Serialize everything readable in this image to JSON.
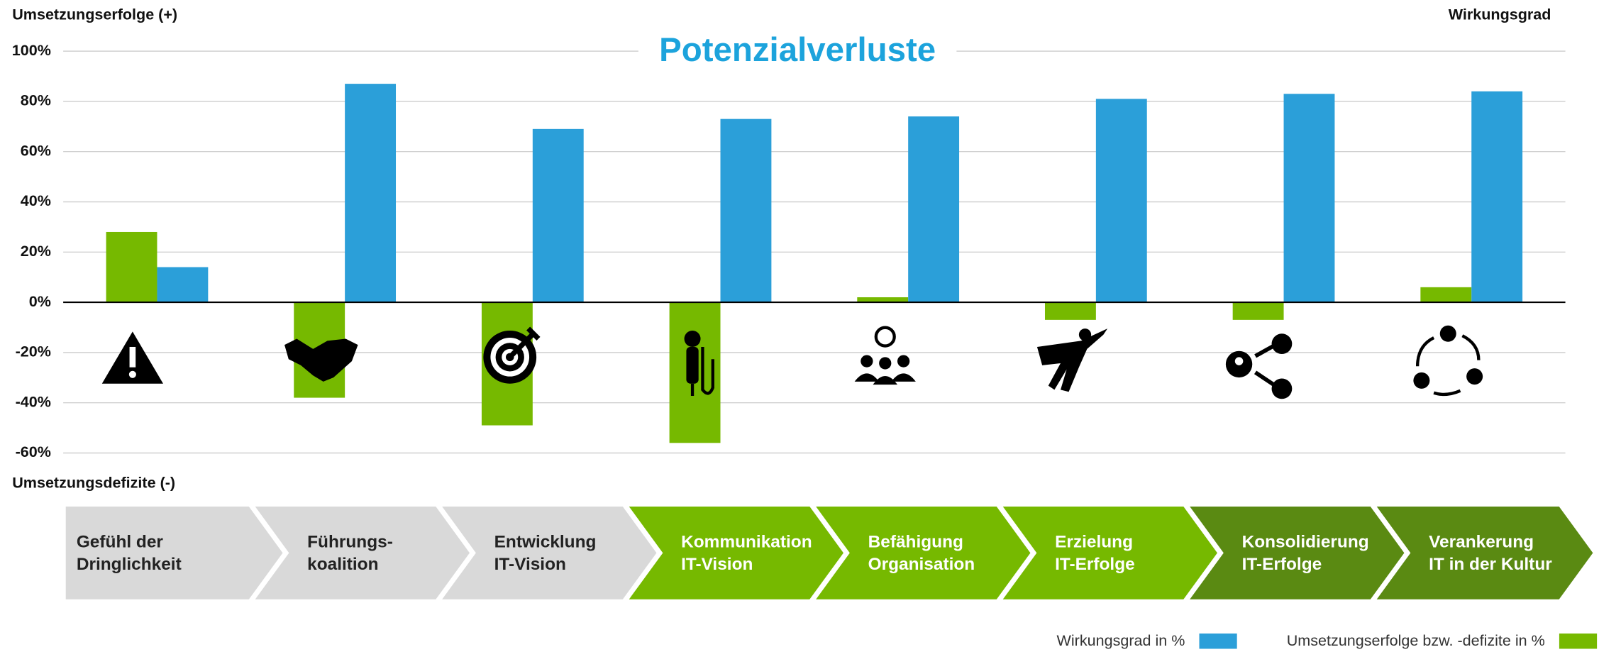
{
  "chart_data": {
    "type": "bar",
    "title": "Potenzialverluste",
    "y_label_top": "Umsetzungserfolge (+)",
    "y_label_bottom": "Umsetzungsdefizite (-)",
    "y_label_right": "Wirkungsgrad",
    "categories": [
      [
        "Gefühl der",
        "Dringlichkeit"
      ],
      [
        "Führungs-",
        "koalition"
      ],
      [
        "Entwicklung",
        "IT-Vision"
      ],
      [
        "Kommunikation",
        "IT-Vision"
      ],
      [
        "Befähigung",
        "Organisation"
      ],
      [
        "Erzielung",
        "IT-Erfolge"
      ],
      [
        "Konsolidierung",
        "IT-Erfolge"
      ],
      [
        "Verankerung",
        "IT in der Kultur"
      ]
    ],
    "category_colors": [
      "#d9d9d9",
      "#d9d9d9",
      "#d9d9d9",
      "#76b900",
      "#76b900",
      "#76b900",
      "#5a8a12",
      "#5a8a12"
    ],
    "series": [
      {
        "name": "Umsetzungserfolge bzw. -defizite in %",
        "color": "#76b900",
        "values": [
          28,
          -38,
          -49,
          -56,
          2,
          -7,
          -7,
          6
        ]
      },
      {
        "name": "Wirkungsgrad in %",
        "color": "#2b9fd9",
        "values": [
          14,
          87,
          69,
          73,
          74,
          81,
          83,
          84
        ]
      }
    ],
    "ylim": [
      -60,
      100
    ],
    "yticks": [
      {
        "value": -60,
        "label": "-60%"
      },
      {
        "value": -40,
        "label": "-40%"
      },
      {
        "value": -20,
        "label": "-20%"
      },
      {
        "value": 0,
        "label": "0%"
      },
      {
        "value": 20,
        "label": "20%"
      },
      {
        "value": 40,
        "label": "40%"
      },
      {
        "value": 60,
        "label": "60%"
      },
      {
        "value": 80,
        "label": "80%"
      },
      {
        "value": 100,
        "label": "100%"
      }
    ],
    "grid": true,
    "legend": "bottom-right"
  }
}
